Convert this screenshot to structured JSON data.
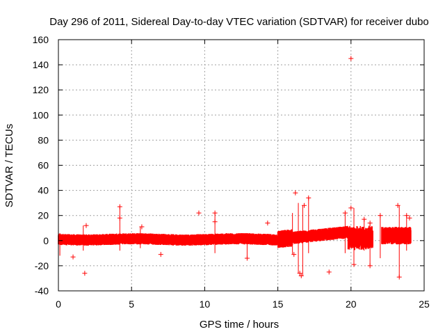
{
  "chart_data": {
    "type": "scatter",
    "title": "Day 296 of 2011, Sidereal Day-to-day VTEC variation (SDTVAR) for receiver dubo",
    "xlabel": "GPS time / hours",
    "ylabel": "SDTVAR / TECUs",
    "xlim": [
      0,
      25
    ],
    "ylim": [
      -40,
      160
    ],
    "xticks": [
      "0",
      "5",
      "10",
      "15",
      "20",
      "25"
    ],
    "yticks": [
      "-40",
      "-20",
      "0",
      "20",
      "40",
      "60",
      "80",
      "100",
      "120",
      "140",
      "160"
    ],
    "grid": true,
    "marker": "+",
    "color": "#ff0000",
    "series": [
      {
        "name": "SDTVAR",
        "outliers": [
          {
            "x": 1.8,
            "y": -26
          },
          {
            "x": 1.0,
            "y": -13
          },
          {
            "x": 1.9,
            "y": 12
          },
          {
            "x": 4.2,
            "y": 27
          },
          {
            "x": 4.2,
            "y": 18
          },
          {
            "x": 5.7,
            "y": 11
          },
          {
            "x": 7.0,
            "y": -11
          },
          {
            "x": 9.6,
            "y": 22
          },
          {
            "x": 10.7,
            "y": 22
          },
          {
            "x": 10.7,
            "y": 15
          },
          {
            "x": 12.9,
            "y": -14
          },
          {
            "x": 14.3,
            "y": 14
          },
          {
            "x": 16.2,
            "y": 38
          },
          {
            "x": 16.1,
            "y": -11
          },
          {
            "x": 16.5,
            "y": -26
          },
          {
            "x": 16.6,
            "y": -28
          },
          {
            "x": 17.1,
            "y": 34
          },
          {
            "x": 16.8,
            "y": 28
          },
          {
            "x": 18.5,
            "y": -25
          },
          {
            "x": 19.6,
            "y": 22
          },
          {
            "x": 20.0,
            "y": 145
          },
          {
            "x": 20.0,
            "y": 26
          },
          {
            "x": 20.2,
            "y": -19
          },
          {
            "x": 20.9,
            "y": 17
          },
          {
            "x": 21.3,
            "y": -20
          },
          {
            "x": 21.3,
            "y": 14
          },
          {
            "x": 23.2,
            "y": 28
          },
          {
            "x": 23.3,
            "y": -29
          },
          {
            "x": 23.8,
            "y": 20
          },
          {
            "x": 24.0,
            "y": 18
          },
          {
            "x": 22.0,
            "y": 20
          }
        ]
      }
    ]
  }
}
